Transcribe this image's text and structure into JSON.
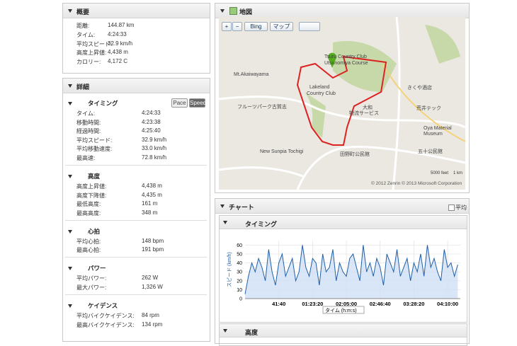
{
  "summary": {
    "title": "概要",
    "rows": [
      {
        "label": "距離:",
        "value": "144.87 km"
      },
      {
        "label": "タイム:",
        "value": "4:24:33"
      },
      {
        "label": "平均スピード:",
        "value": "32.9 km/h"
      },
      {
        "label": "高度上昇値:",
        "value": "4,438 m"
      },
      {
        "label": "カロリー:",
        "value": "4,172 C"
      }
    ]
  },
  "details": {
    "title": "詳細",
    "toggle": [
      "Pace",
      "Speed"
    ],
    "sections": [
      {
        "title": "タイミング",
        "rows": [
          {
            "label": "タイム:",
            "value": "4:24:33"
          },
          {
            "label": "移動時間:",
            "value": "4:23:38"
          },
          {
            "label": "経過時間:",
            "value": "4:25:40"
          },
          {
            "label": "平均スピード:",
            "value": "32.9 km/h"
          },
          {
            "label": "平均移動速度:",
            "value": "33.0 km/h"
          },
          {
            "label": "最高速:",
            "value": "72.8 km/h"
          }
        ]
      },
      {
        "title": "高度",
        "rows": [
          {
            "label": "高度上昇値:",
            "value": "4,438 m"
          },
          {
            "label": "高度下降値:",
            "value": "4,435 m"
          },
          {
            "label": "最低高度:",
            "value": "161 m"
          },
          {
            "label": "最高高度:",
            "value": "348 m"
          }
        ]
      },
      {
        "title": "心拍",
        "rows": [
          {
            "label": "平均心拍:",
            "value": "148 bpm"
          },
          {
            "label": "最高心拍:",
            "value": "191 bpm"
          }
        ]
      },
      {
        "title": "パワー",
        "rows": [
          {
            "label": "平均パワー:",
            "value": "262 W"
          },
          {
            "label": "最大パワー:",
            "value": "1,326 W"
          }
        ]
      },
      {
        "title": "ケイデンス",
        "rows": [
          {
            "label": "平均バイクケイデンス:",
            "value": "84 rpm"
          },
          {
            "label": "最高バイクケイデンス:",
            "value": "134 rpm"
          }
        ]
      }
    ]
  },
  "map": {
    "title": "地図",
    "controls": [
      "Bing",
      "マップ"
    ],
    "labels": [
      "Mt.Akaiwayama",
      "Lakeland",
      "Country Club",
      "Tsuru Country Club",
      "Utsunomiya Course",
      "フルーツパーク古賀志",
      "New Sunpia Tochigi",
      "田野町公民館",
      "大和",
      "物流サービス",
      "Oya Material",
      "Museum",
      "荒井テック",
      "五十公民館",
      "きくや酒店"
    ],
    "scale": [
      "5000 feet",
      "1 km"
    ],
    "copyright": "© 2012 Zenrin © 2013 Microsoft Corporation"
  },
  "chart_panel": {
    "title": "チャート",
    "average": "平均",
    "subpanels": [
      "タイミング",
      "高度"
    ]
  },
  "chart_data": {
    "type": "line",
    "x_label": "タイム (h:m:s)",
    "y_label": "スピード (km/h)",
    "color": "#1f5fa8",
    "x": [
      0,
      250,
      500,
      750,
      1000,
      1250,
      1500,
      1750,
      2000,
      2250,
      2500,
      2750,
      3000,
      3250,
      3500,
      3750,
      4000,
      4250,
      4500,
      4750,
      5000,
      5250,
      5500,
      5750,
      6000,
      6250,
      6500,
      6750,
      7000,
      7250,
      7500,
      7750,
      8000,
      8250,
      8500,
      8750,
      9000,
      9250,
      9500,
      9750,
      10000,
      10250,
      10500,
      10750,
      11000,
      11250,
      11500,
      11750,
      12000,
      12250,
      12500,
      12750,
      13000,
      13250,
      13500,
      13750,
      14000,
      14250,
      14500,
      14750,
      15000,
      15250,
      15500,
      15750
    ],
    "values": [
      5,
      25,
      40,
      30,
      45,
      35,
      20,
      55,
      30,
      15,
      40,
      50,
      25,
      35,
      45,
      20,
      30,
      60,
      35,
      25,
      45,
      40,
      15,
      50,
      30,
      35,
      55,
      20,
      40,
      30,
      25,
      45,
      50,
      35,
      20,
      60,
      30,
      40,
      25,
      45,
      35,
      15,
      50,
      40,
      30,
      55,
      25,
      35,
      45,
      20,
      40,
      30,
      50,
      25,
      60,
      35,
      45,
      30,
      20,
      55,
      35,
      40,
      25,
      38
    ],
    "xlim": [
      0,
      15940
    ],
    "ylim": [
      0,
      65
    ],
    "yticks": [
      0,
      10,
      20,
      30,
      40,
      50,
      60
    ],
    "xticks": [
      {
        "value": 2500,
        "label": "41:40"
      },
      {
        "value": 5000,
        "label": "01:23:20"
      },
      {
        "value": 7500,
        "label": "02:05:00"
      },
      {
        "value": 10000,
        "label": "02:46:40"
      },
      {
        "value": 12500,
        "label": "03:28:20"
      },
      {
        "value": 15000,
        "label": "04:10:00"
      }
    ],
    "grid": true
  }
}
